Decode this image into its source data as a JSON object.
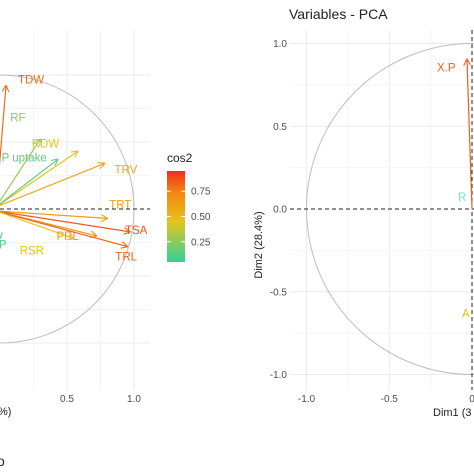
{
  "chart_data": [
    {
      "type": "scatter",
      "subtype": "pca-variable-correlation-circle",
      "title": "",
      "xlabel": "",
      "xlabel_visible_fragment": "%)",
      "ylabel": "",
      "xlim": [
        -0.1,
        1.05
      ],
      "ylim": [
        -1.15,
        1.12
      ],
      "x_ticks": [
        0.5,
        1.0
      ],
      "x_tick_labels": [
        "0.5",
        "1.0"
      ],
      "grid": true,
      "variables": [
        {
          "name": "TDW",
          "x": 0.0,
          "y": 0.92,
          "cos2": 0.85,
          "label_visible": "TDW"
        },
        {
          "name": "RF",
          "x": 0.0,
          "y": 0.52,
          "cos2": 0.25,
          "label_visible": "RF"
        },
        {
          "name": "RDW",
          "x": 0.0,
          "y": 0.43,
          "cos2": 0.45,
          "label_visible": "RDW"
        },
        {
          "name": "P uptake",
          "x": 0.0,
          "y": 0.37,
          "cos2": 0.1,
          "label_visible": "P uptake"
        },
        {
          "name": "TRV",
          "x": 0.78,
          "y": 0.34,
          "cos2": 0.6,
          "label_visible": "TRV"
        },
        {
          "name": "TRT",
          "x": 0.8,
          "y": -0.07,
          "cos2": 0.65,
          "label_visible": "TRT"
        },
        {
          "name": "TSA",
          "x": 0.97,
          "y": -0.17,
          "cos2": 0.92,
          "label_visible": "TSA"
        },
        {
          "name": "PRL",
          "x": 0.72,
          "y": -0.2,
          "cos2": 0.7,
          "label_visible": "PRL"
        },
        {
          "name": "TRL",
          "x": 0.95,
          "y": -0.28,
          "cos2": 0.88,
          "label_visible": "TRL"
        },
        {
          "name": "RSR",
          "x": 0.55,
          "y": -0.22,
          "cos2": 0.45,
          "label_visible": "RSR"
        },
        {
          "name": "X.P",
          "x": 0.0,
          "y": -0.22,
          "cos2": 0.05,
          "label_visible": "X.P"
        }
      ]
    },
    {
      "type": "scatter",
      "subtype": "pca-variable-correlation-circle",
      "title": "Variables - PCA",
      "xlabel": "Dim1 (3",
      "ylabel": "Dim2 (28.4%)",
      "xlim": [
        -1.18,
        1.05
      ],
      "ylim": [
        -1.12,
        1.12
      ],
      "x_ticks": [
        -1.0,
        -0.5,
        0.0
      ],
      "x_tick_labels": [
        "-1.0",
        "-0.5",
        "0"
      ],
      "y_ticks": [
        -1.0,
        -0.5,
        0.0,
        0.5,
        1.0
      ],
      "y_tick_labels": [
        "-1.0",
        "-0.5",
        "0.0",
        "0.5",
        "1.0"
      ],
      "grid": true,
      "variables": [
        {
          "name": "X.P",
          "x": 0.03,
          "y": 0.94,
          "cos2": 0.9,
          "label_visible": "X.P"
        },
        {
          "name": "R",
          "x": 0.0,
          "y": 0.05,
          "cos2": 0.05,
          "label_visible": "R"
        },
        {
          "name": "A",
          "x": 0.0,
          "y": -0.63,
          "cos2": 0.4,
          "label_visible": "A"
        }
      ]
    }
  ],
  "legend": {
    "title": "cos2",
    "ticks": [
      0.25,
      0.5,
      0.75
    ],
    "tick_labels": [
      "0.25",
      "0.50",
      "0.75"
    ],
    "range": [
      0.05,
      0.95
    ],
    "colors": [
      "#00AFBB",
      "#E7B800",
      "#FC4E07"
    ],
    "placement": "right of left panel"
  },
  "footer": {
    "caption_fragment": "o"
  }
}
